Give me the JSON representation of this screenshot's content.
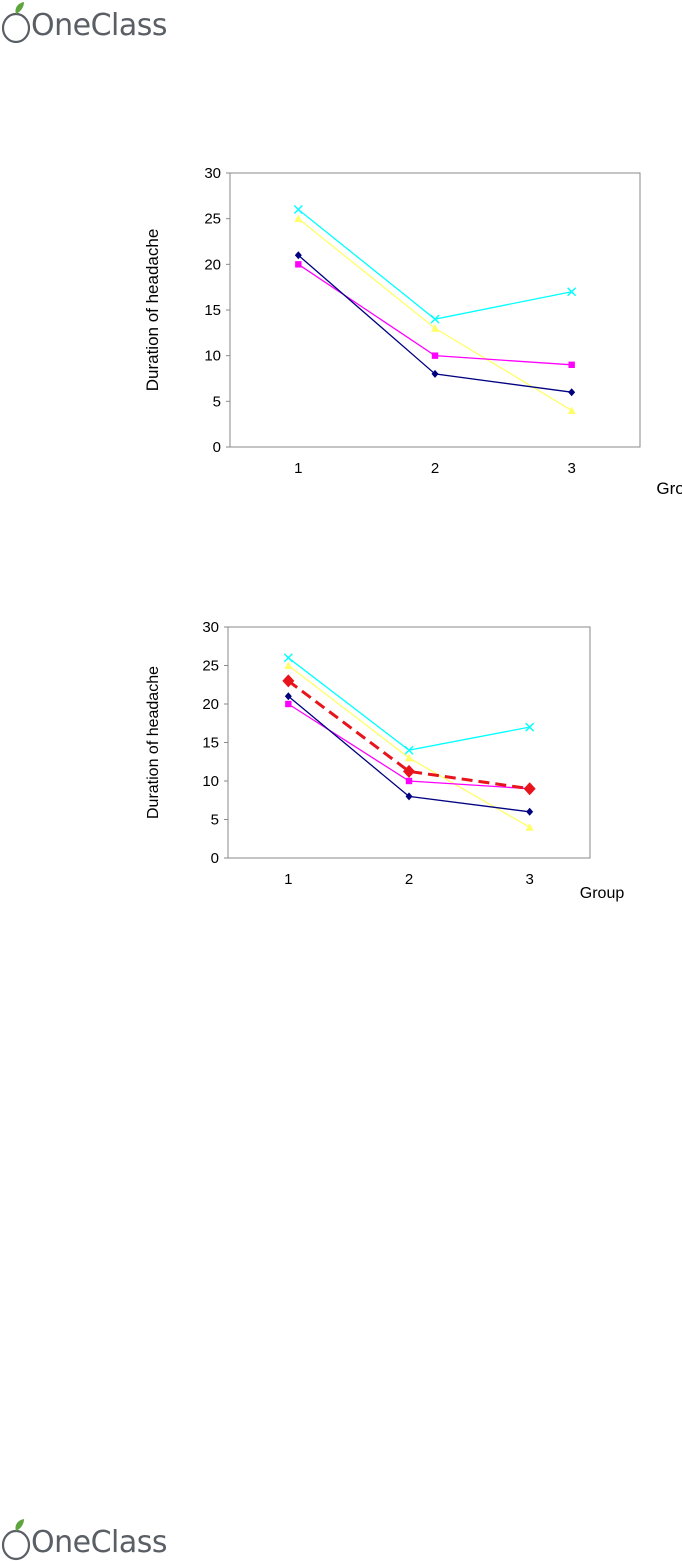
{
  "brand": {
    "logo_text": "OneClass",
    "colors": {
      "text": "#5a5f66",
      "leaf": "#5fa53d"
    }
  },
  "chart_data": [
    {
      "type": "line",
      "title": "",
      "xlabel": "Group",
      "ylabel": "Duration of headache",
      "categories": [
        "1",
        "2",
        "3"
      ],
      "ylim": [
        0,
        30
      ],
      "yticks": [
        0,
        5,
        10,
        15,
        20,
        25,
        30
      ],
      "grid": false,
      "legend": "none",
      "series": [
        {
          "color": "#00ffff",
          "marker": "x",
          "dash": false,
          "values": [
            26,
            14,
            17
          ]
        },
        {
          "color": "#ffff66",
          "marker": "triangle",
          "dash": false,
          "values": [
            25,
            13,
            4
          ]
        },
        {
          "color": "#ff00ff",
          "marker": "square",
          "dash": false,
          "values": [
            20,
            10,
            9
          ]
        },
        {
          "color": "#000080",
          "marker": "diamond",
          "dash": false,
          "values": [
            21,
            8,
            6
          ]
        }
      ]
    },
    {
      "type": "line",
      "title": "",
      "xlabel": "Group",
      "ylabel": "Duration of headache",
      "categories": [
        "1",
        "2",
        "3"
      ],
      "ylim": [
        0,
        30
      ],
      "yticks": [
        0,
        5,
        10,
        15,
        20,
        25,
        30
      ],
      "grid": false,
      "legend": "none",
      "series": [
        {
          "color": "#00ffff",
          "marker": "x",
          "dash": false,
          "values": [
            26,
            14,
            17
          ]
        },
        {
          "color": "#ffff66",
          "marker": "triangle",
          "dash": false,
          "values": [
            25,
            13,
            4
          ]
        },
        {
          "color": "#ff00ff",
          "marker": "square",
          "dash": false,
          "values": [
            20,
            10,
            9
          ]
        },
        {
          "color": "#000080",
          "marker": "diamond",
          "dash": false,
          "values": [
            21,
            8,
            6
          ]
        },
        {
          "color": "#e8141c",
          "marker": "diamond-large",
          "dash": true,
          "values": [
            23,
            11.25,
            9
          ]
        }
      ]
    }
  ]
}
